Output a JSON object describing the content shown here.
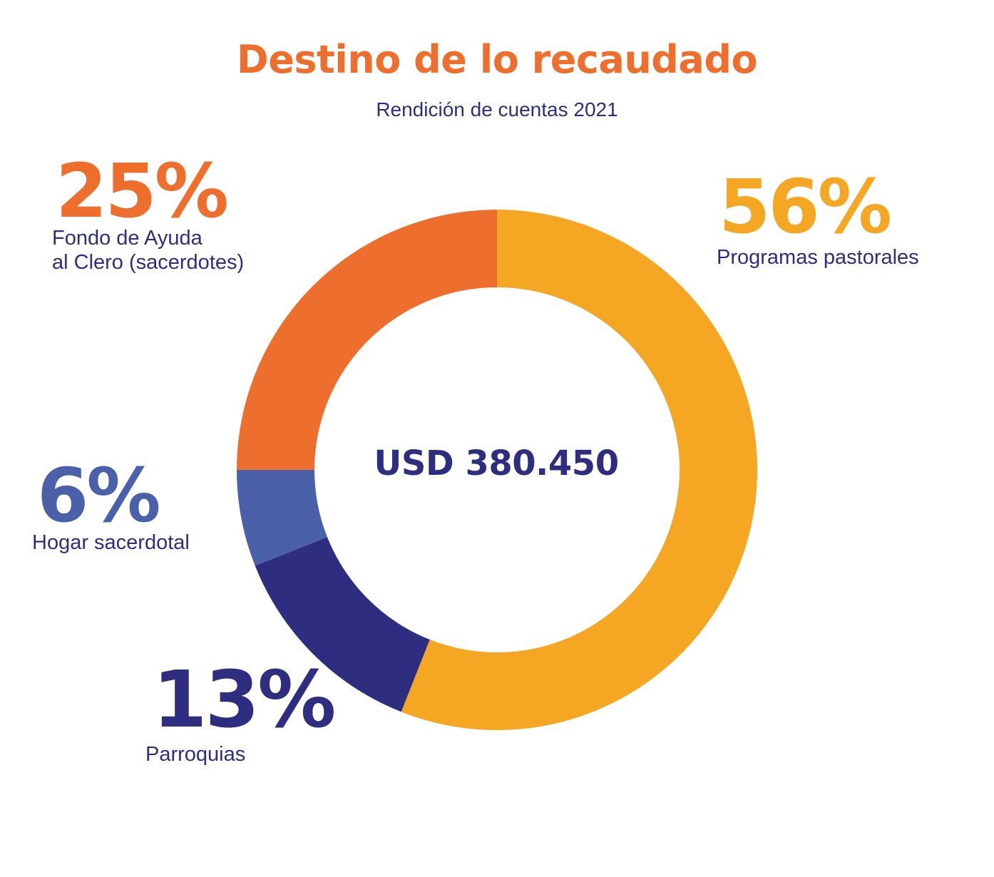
{
  "title": "Destino de lo recaudado",
  "subtitle": "Rendición de cuentas 2021",
  "center_total": "USD 380.450",
  "colors": {
    "title": "#EE6F2D",
    "text": "#2E2D7F",
    "programas": "#F5A623",
    "fondo": "#EE6F2D",
    "hogar": "#4A60A8",
    "parroquias": "#2E2D7F"
  },
  "chart_data": {
    "type": "pie",
    "variant": "donut",
    "title": "Destino de lo recaudado",
    "subtitle": "Rendición de cuentas 2021",
    "total_label": "USD 380.450",
    "start_angle": "12 o'clock",
    "direction": "clockwise",
    "slices": [
      {
        "label_lines": [
          "Programas pastorales"
        ],
        "value": 56,
        "value_label": "56%",
        "color": "#F5A623"
      },
      {
        "label_lines": [
          "Parroquias"
        ],
        "value": 13,
        "value_label": "13%",
        "color": "#2E2D7F"
      },
      {
        "label_lines": [
          "Hogar sacerdotal"
        ],
        "value": 6,
        "value_label": "6%",
        "color": "#4A60A8"
      },
      {
        "label_lines": [
          "Fondo de Ayuda",
          "al Clero (sacerdotes)"
        ],
        "value": 25,
        "value_label": "25%",
        "color": "#EE6F2D"
      }
    ]
  }
}
